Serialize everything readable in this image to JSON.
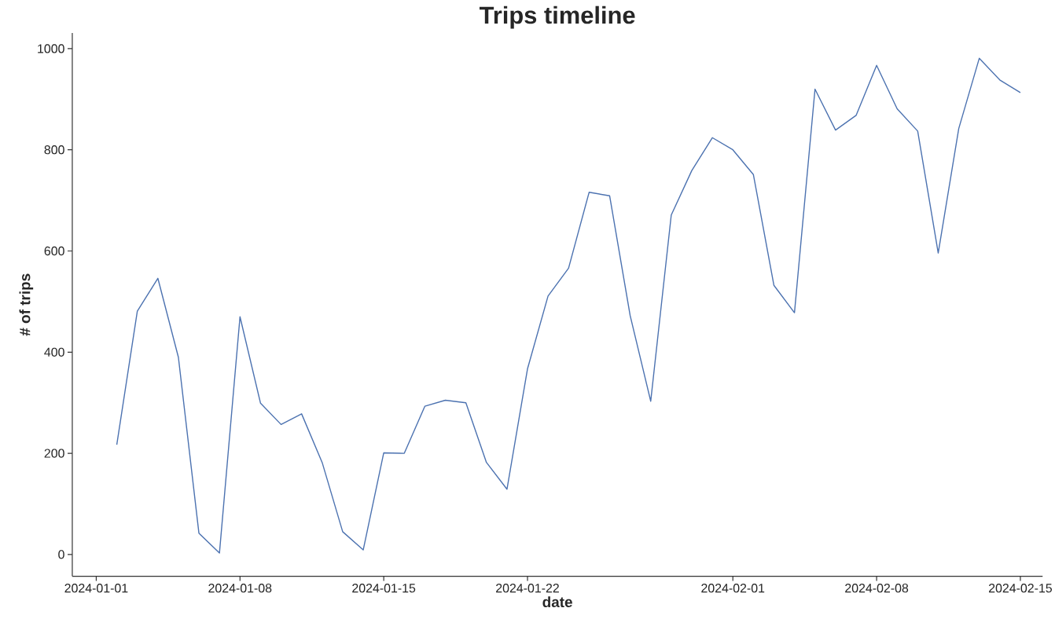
{
  "chart_data": {
    "type": "line",
    "title": "Trips timeline",
    "xlabel": "date",
    "ylabel": "# of trips",
    "x": [
      "2024-01-02",
      "2024-01-03",
      "2024-01-04",
      "2024-01-05",
      "2024-01-06",
      "2024-01-07",
      "2024-01-08",
      "2024-01-09",
      "2024-01-10",
      "2024-01-11",
      "2024-01-12",
      "2024-01-13",
      "2024-01-14",
      "2024-01-15",
      "2024-01-16",
      "2024-01-17",
      "2024-01-18",
      "2024-01-19",
      "2024-01-20",
      "2024-01-21",
      "2024-01-22",
      "2024-01-23",
      "2024-01-24",
      "2024-01-25",
      "2024-01-26",
      "2024-01-27",
      "2024-01-28",
      "2024-01-29",
      "2024-01-30",
      "2024-01-31",
      "2024-02-01",
      "2024-02-02",
      "2024-02-03",
      "2024-02-04",
      "2024-02-05",
      "2024-02-06",
      "2024-02-07",
      "2024-02-08",
      "2024-02-09",
      "2024-02-10",
      "2024-02-11",
      "2024-02-12",
      "2024-02-13",
      "2024-02-14",
      "2024-02-15"
    ],
    "series": [
      {
        "color": "#4c72b0",
        "values": [
          217,
          481,
          546,
          390,
          42,
          3,
          470,
          299,
          257,
          278,
          182,
          45,
          9,
          201,
          200,
          293,
          305,
          300,
          182,
          129,
          367,
          511,
          566,
          716,
          709,
          472,
          303,
          671,
          759,
          824,
          800,
          751,
          532,
          478,
          920,
          839,
          868,
          967,
          881,
          837,
          596,
          842,
          981,
          938,
          913
        ]
      }
    ],
    "xlim": [
      "2023-12-30T20:00",
      "2024-02-16T02:00"
    ],
    "xticks": [
      "2024-01-01",
      "2024-01-08",
      "2024-01-15",
      "2024-01-22",
      "2024-02-01",
      "2024-02-08",
      "2024-02-15"
    ],
    "ylim": [
      -43,
      1031
    ],
    "yticks": [
      0,
      200,
      400,
      600,
      800,
      1000
    ],
    "grid": false,
    "marker": "none",
    "line_style": "solid"
  }
}
